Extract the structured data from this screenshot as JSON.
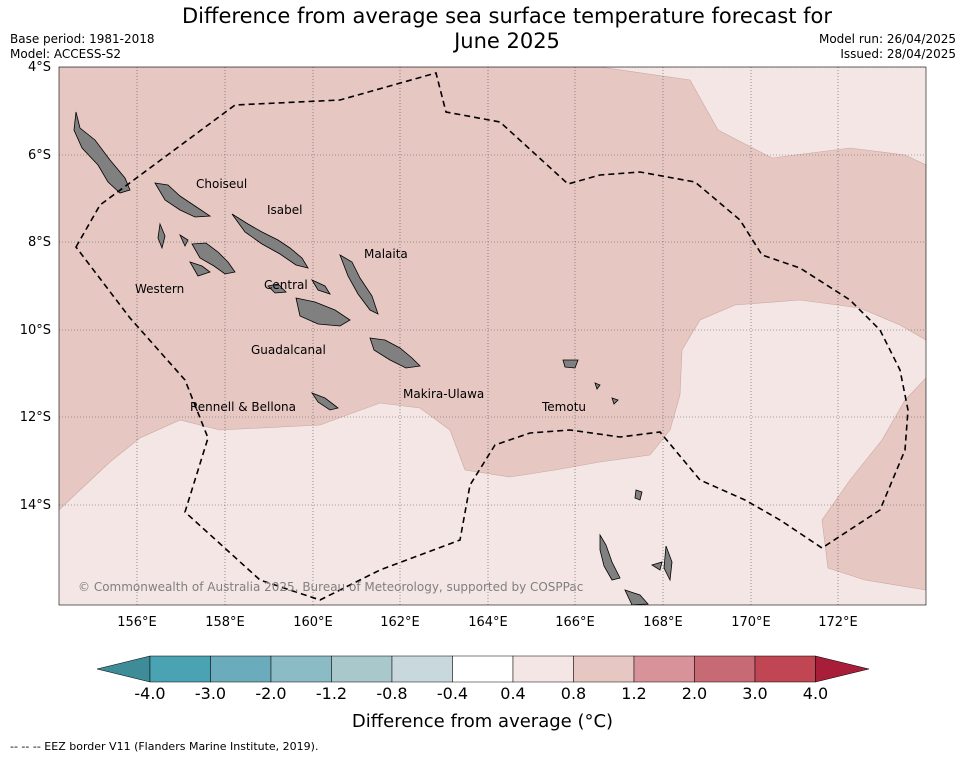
{
  "header": {
    "title_line1": "Difference from average sea surface temperature forecast for",
    "title_line2": "June 2025",
    "base_period": "Base period: 1981-2018",
    "model": "Model: ACCESS-S2",
    "model_run": "Model run: 26/04/2025",
    "issued": "Issued: 28/04/2025"
  },
  "map": {
    "lat_labels": [
      "4°S",
      "6°S",
      "8°S",
      "10°S",
      "12°S",
      "14°S"
    ],
    "lon_labels": [
      "156°E",
      "158°E",
      "160°E",
      "162°E",
      "164°E",
      "166°E",
      "168°E",
      "170°E",
      "172°E"
    ],
    "provinces": {
      "choiseul": "Choiseul",
      "isabel": "Isabel",
      "malaita": "Malaita",
      "western": "Western",
      "central": "Central",
      "guadalcanal": "Guadalcanal",
      "makira_ulawa": "Makira-Ulawa",
      "rennell_bellona": "Rennell & Bellona",
      "temotu": "Temotu"
    },
    "copyright": "© Commonwealth of Australia 2025, Bureau of Meteorology, supported by COSPPac",
    "colors": {
      "band_0.4_0.8": "#f4e6e4",
      "band_0.8_1.2": "#e6c7c2",
      "land": "#808080"
    }
  },
  "colorbar": {
    "ticks": [
      "-4.0",
      "-3.0",
      "-2.0",
      "-1.2",
      "-0.8",
      "-0.4",
      "0.4",
      "0.8",
      "1.2",
      "2.0",
      "3.0",
      "4.0"
    ],
    "colors": [
      "#3d8c98",
      "#4aa3b3",
      "#6aacbb",
      "#8bbbc5",
      "#a9c8cc",
      "#c9d8dc",
      "#ffffff",
      "#f4e6e4",
      "#e6c7c2",
      "#d8929a",
      "#c86a74",
      "#c04654",
      "#a81e38"
    ],
    "label": "Difference from average (°C)"
  },
  "footnote": "--  --  -- EEZ border V11 (Flanders Marine Institute, 2019)."
}
